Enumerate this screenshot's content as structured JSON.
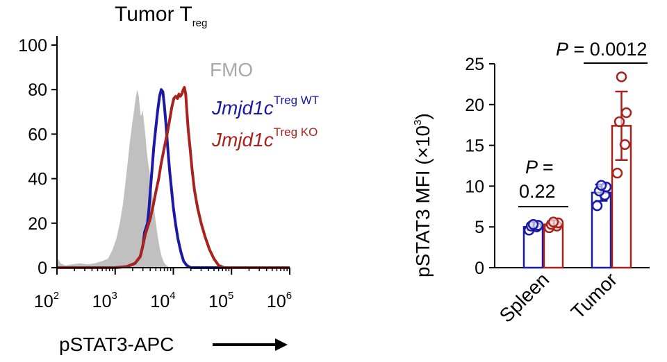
{
  "chart_data": [
    {
      "type": "histogram",
      "title": "Tumor T",
      "title_subscript": "reg",
      "xlabel": "pSTAT3-APC",
      "xscale": "log",
      "xlim": [
        100,
        1000000
      ],
      "x_ticks": [
        {
          "base": "10",
          "exp": "2",
          "value": 100
        },
        {
          "base": "10",
          "exp": "3",
          "value": 1000
        },
        {
          "base": "10",
          "exp": "4",
          "value": 10000
        },
        {
          "base": "10",
          "exp": "5",
          "value": 100000
        },
        {
          "base": "10",
          "exp": "6",
          "value": 1000000
        }
      ],
      "ylim": [
        0,
        100
      ],
      "y_ticks": [
        {
          "label": "0",
          "value": 0
        },
        {
          "label": "20",
          "value": 20
        },
        {
          "label": "40",
          "value": 40
        },
        {
          "label": "60",
          "value": 60
        },
        {
          "label": "80",
          "value": 80
        },
        {
          "label": "100",
          "value": 100
        }
      ],
      "series": [
        {
          "name": "FMO",
          "color": "#c0c0c0",
          "style": "filled",
          "points": [
            [
              100,
              0
            ],
            [
              105,
              4
            ],
            [
              115,
              2
            ],
            [
              140,
              1
            ],
            [
              180,
              1.5
            ],
            [
              250,
              2
            ],
            [
              330,
              1.5
            ],
            [
              450,
              2
            ],
            [
              600,
              3
            ],
            [
              750,
              4
            ],
            [
              900,
              8
            ],
            [
              1050,
              13
            ],
            [
              1200,
              20
            ],
            [
              1350,
              28
            ],
            [
              1500,
              38
            ],
            [
              1650,
              48
            ],
            [
              1800,
              57
            ],
            [
              1950,
              64
            ],
            [
              2100,
              70
            ],
            [
              2250,
              76
            ],
            [
              2400,
              80
            ],
            [
              2550,
              77
            ],
            [
              2650,
              72
            ],
            [
              2750,
              68
            ],
            [
              2850,
              69
            ],
            [
              2950,
              71
            ],
            [
              3050,
              68
            ],
            [
              3200,
              63
            ],
            [
              3350,
              58
            ],
            [
              3500,
              52
            ],
            [
              3700,
              47
            ],
            [
              3900,
              43
            ],
            [
              4100,
              38
            ],
            [
              4400,
              32
            ],
            [
              4700,
              26
            ],
            [
              5000,
              20
            ],
            [
              5400,
              14
            ],
            [
              5800,
              9
            ],
            [
              6300,
              5
            ],
            [
              7000,
              2
            ],
            [
              8000,
              0.5
            ],
            [
              9000,
              0
            ]
          ]
        },
        {
          "name": "Jmjd1c",
          "name_superscript": "Treg WT",
          "color": "#1a1aa6",
          "style": "line",
          "points": [
            [
              100,
              0
            ],
            [
              1000,
              0
            ],
            [
              1600,
              0.5
            ],
            [
              2200,
              2
            ],
            [
              2700,
              5
            ],
            [
              3000,
              10
            ],
            [
              3200,
              16
            ],
            [
              3400,
              18
            ],
            [
              3600,
              20
            ],
            [
              3800,
              26
            ],
            [
              4000,
              34
            ],
            [
              4300,
              44
            ],
            [
              4600,
              54
            ],
            [
              5000,
              63
            ],
            [
              5400,
              71
            ],
            [
              5800,
              77
            ],
            [
              6200,
              80
            ],
            [
              6600,
              79
            ],
            [
              7000,
              73
            ],
            [
              7500,
              64
            ],
            [
              8000,
              54
            ],
            [
              8600,
              44
            ],
            [
              9300,
              35
            ],
            [
              10000,
              27
            ],
            [
              11000,
              19
            ],
            [
              12000,
              13
            ],
            [
              13500,
              7
            ],
            [
              15000,
              3
            ],
            [
              17000,
              1
            ],
            [
              20000,
              0
            ],
            [
              1000000,
              0
            ]
          ]
        },
        {
          "name": "Jmjd1c",
          "name_superscript": "Treg KO",
          "color": "#a8231e",
          "style": "line",
          "points": [
            [
              100,
              0
            ],
            [
              1000,
              0
            ],
            [
              1600,
              0.5
            ],
            [
              2200,
              2
            ],
            [
              2700,
              5
            ],
            [
              3000,
              10
            ],
            [
              3300,
              15
            ],
            [
              3600,
              18
            ],
            [
              4000,
              22
            ],
            [
              4500,
              28
            ],
            [
              5000,
              34
            ],
            [
              5600,
              40
            ],
            [
              6200,
              47
            ],
            [
              7000,
              54
            ],
            [
              7800,
              60
            ],
            [
              8600,
              66
            ],
            [
              9400,
              72
            ],
            [
              10200,
              76
            ],
            [
              11000,
              77
            ],
            [
              11800,
              76
            ],
            [
              12500,
              78
            ],
            [
              13200,
              77
            ],
            [
              14000,
              78
            ],
            [
              14800,
              80
            ],
            [
              15500,
              81
            ],
            [
              16300,
              78
            ],
            [
              17000,
              71
            ],
            [
              18000,
              62
            ],
            [
              19500,
              53
            ],
            [
              21000,
              44
            ],
            [
              23000,
              35
            ],
            [
              26000,
              27
            ],
            [
              30000,
              20
            ],
            [
              35000,
              14
            ],
            [
              42000,
              8
            ],
            [
              50000,
              4
            ],
            [
              60000,
              1
            ],
            [
              75000,
              0
            ],
            [
              1000000,
              0
            ]
          ]
        }
      ]
    },
    {
      "type": "bar",
      "ylabel": "pSTAT3 MFI (×10",
      "ylabel_sup": "3",
      "ylabel_close": ")",
      "ylim": [
        0,
        25
      ],
      "y_ticks": [
        {
          "label": "0",
          "value": 0
        },
        {
          "label": "5",
          "value": 5
        },
        {
          "label": "10",
          "value": 10
        },
        {
          "label": "15",
          "value": 15
        },
        {
          "label": "20",
          "value": 20
        },
        {
          "label": "25",
          "value": 25
        }
      ],
      "categories": [
        "Spleen",
        "Tumor"
      ],
      "series": [
        {
          "name": "Treg WT",
          "color": "#1a1aa6",
          "values": [
            5.0,
            9.2
          ],
          "errors": [
            0.4,
            1.0
          ],
          "points": [
            [
              4.6,
              5.0,
              5.1,
              5.2,
              5.3
            ],
            [
              7.6,
              8.9,
              9.4,
              9.9,
              10.1
            ]
          ]
        },
        {
          "name": "Treg KO",
          "color": "#a8231e",
          "values": [
            5.3,
            17.4
          ],
          "errors": [
            0.4,
            4.2
          ],
          "points": [
            [
              4.9,
              5.1,
              5.3,
              5.5,
              5.6
            ],
            [
              11.6,
              15.1,
              17.9,
              19.0,
              23.4
            ]
          ]
        }
      ],
      "annotations": [
        {
          "line1": "P =",
          "line2": "0.22",
          "category": "Spleen"
        },
        {
          "line1": "P",
          "line1_rest": " = 0.0012",
          "category": "Tumor"
        }
      ]
    }
  ]
}
